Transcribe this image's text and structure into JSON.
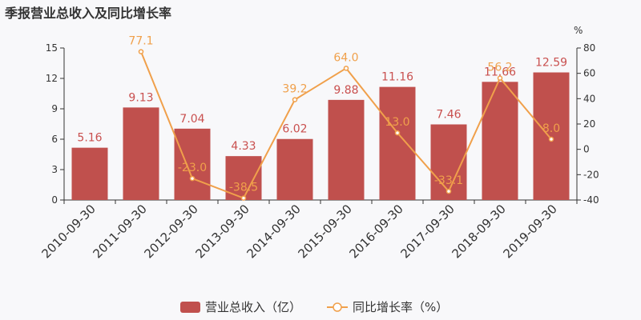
{
  "chart_data": {
    "type": "bar",
    "title": "季报营业总收入及同比增长率",
    "categories": [
      "2010-09-30",
      "2011-09-30",
      "2012-09-30",
      "2013-09-30",
      "2014-09-30",
      "2015-09-30",
      "2016-09-30",
      "2017-09-30",
      "2018-09-30",
      "2019-09-30"
    ],
    "series": [
      {
        "name": "营业总收入（亿）",
        "type": "bar",
        "axis": "left",
        "color": "#c0504d",
        "values": [
          5.16,
          9.13,
          7.04,
          4.33,
          6.02,
          9.88,
          11.16,
          7.46,
          11.66,
          12.59
        ],
        "labels": [
          "5.16",
          "9.13",
          "7.04",
          "4.33",
          "6.02",
          "9.88",
          "11.16",
          "7.46",
          "11.66",
          "12.59"
        ]
      },
      {
        "name": "同比增长率（%）",
        "type": "line",
        "axis": "right",
        "color": "#f0a04b",
        "values": [
          null,
          77.1,
          -23.0,
          -38.5,
          39.2,
          64.0,
          13.0,
          -33.1,
          56.2,
          8.0
        ],
        "labels": [
          "",
          "77.1",
          "-23.0",
          "-38.5",
          "39.2",
          "64.0",
          "13.0",
          "-33.1",
          "56.2",
          "8.0"
        ]
      }
    ],
    "y_left": {
      "min": 0,
      "max": 15,
      "ticks": [
        "0",
        "3",
        "6",
        "9",
        "12",
        "15"
      ]
    },
    "y_right": {
      "min": -40,
      "max": 80,
      "unit": "%",
      "ticks": [
        "-40",
        "-20",
        "0",
        "20",
        "40",
        "60",
        "80"
      ]
    },
    "legend_placement": "bottom-center",
    "grid": false
  }
}
